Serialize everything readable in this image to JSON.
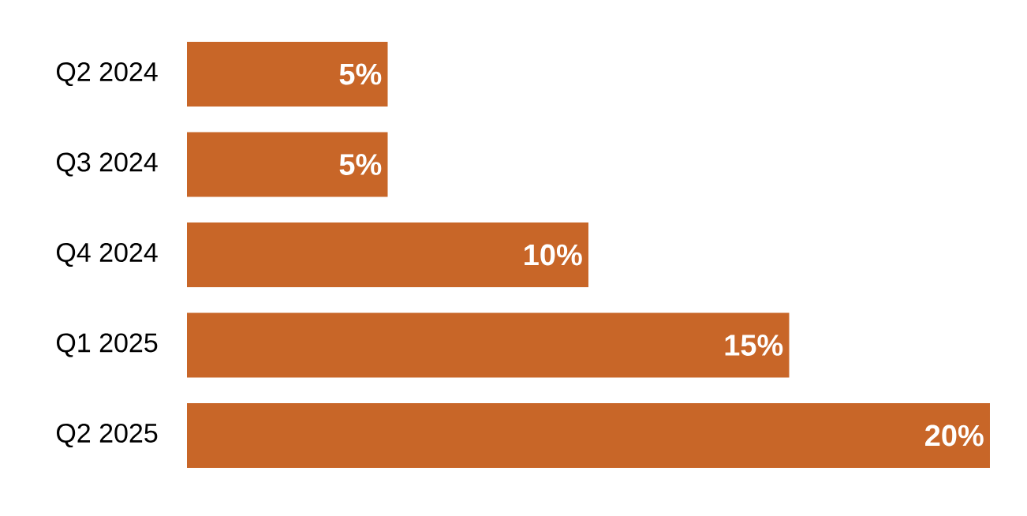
{
  "chart_data": {
    "type": "bar",
    "orientation": "horizontal",
    "categories": [
      "Q2 2024",
      "Q3 2024",
      "Q4 2024",
      "Q1 2025",
      "Q2 2025"
    ],
    "values": [
      5,
      5,
      10,
      15,
      20
    ],
    "value_labels": [
      "5%",
      "5%",
      "10%",
      "15%",
      "20%"
    ],
    "color": "#c86628"
  }
}
